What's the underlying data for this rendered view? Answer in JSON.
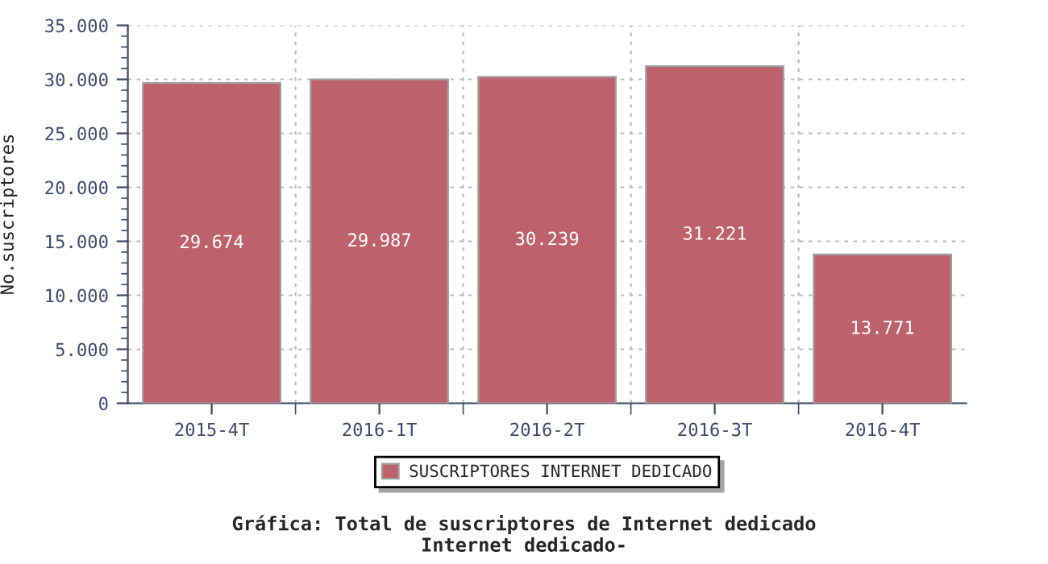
{
  "chart_data": {
    "type": "bar",
    "title": "Gráfica: Total de suscriptores de Internet dedicado\nInternet dedicado-",
    "ylabel": "No.suscriptores",
    "categories": [
      "2015-4T",
      "2016-1T",
      "2016-2T",
      "2016-3T",
      "2016-4T"
    ],
    "series": [
      {
        "name": "SUSCRIPTORES INTERNET DEDICADO",
        "color": "#bd616b",
        "values": [
          29674,
          29987,
          30239,
          31221,
          13771
        ],
        "value_labels": [
          "29.674",
          "29.987",
          "30.239",
          "31.221",
          "13.771"
        ]
      }
    ],
    "ylim": [
      0,
      35000
    ],
    "yticks": [
      0,
      {
        "value": 5000,
        "label": "5.000"
      },
      {
        "value": 10000,
        "label": "10.000"
      },
      {
        "value": 15000,
        "label": "15.000"
      },
      {
        "value": 20000,
        "label": "20.000"
      },
      {
        "value": 25000,
        "label": "25.000"
      },
      {
        "value": 30000,
        "label": "30.000"
      },
      {
        "value": 35000,
        "label": "35.000"
      }
    ],
    "grid": true,
    "legend": "bottom"
  }
}
